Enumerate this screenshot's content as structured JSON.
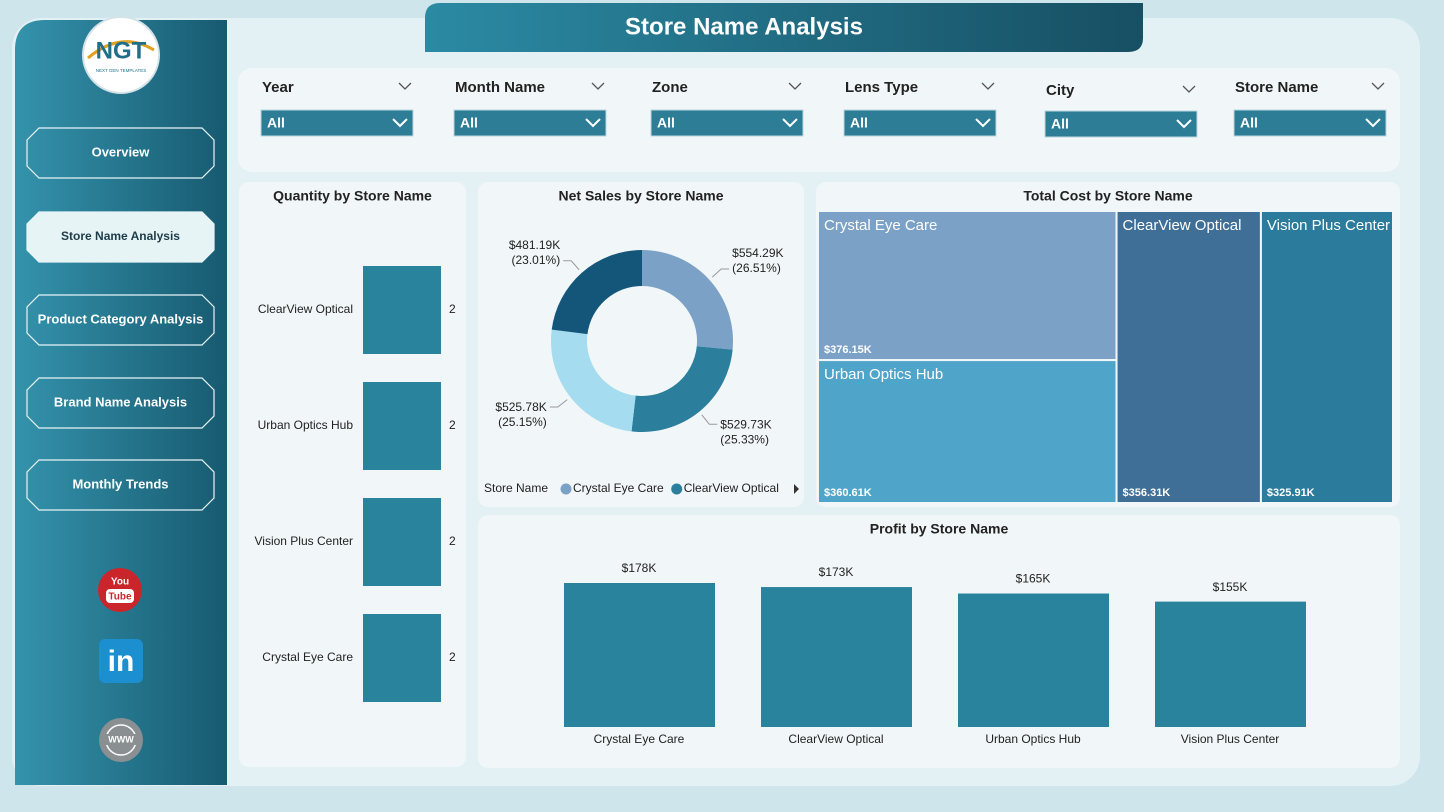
{
  "header": {
    "title": "Store Name Analysis"
  },
  "logo": {
    "text": "NGT",
    "tagline": "NEXT GEN TEMPLATES"
  },
  "nav": [
    {
      "label": "Overview",
      "active": false
    },
    {
      "label": "Store Name Analysis",
      "active": true
    },
    {
      "label": "Product Category Analysis",
      "active": false
    },
    {
      "label": "Brand Name Analysis",
      "active": false
    },
    {
      "label": "Monthly Trends",
      "active": false
    }
  ],
  "social": {
    "youtube": [
      "You",
      "Tube"
    ],
    "linkedin": "in",
    "web": "WWW"
  },
  "filters": [
    {
      "label": "Year",
      "value": "All"
    },
    {
      "label": "Month Name",
      "value": "All"
    },
    {
      "label": "Zone",
      "value": "All"
    },
    {
      "label": "Lens Type",
      "value": "All"
    },
    {
      "label": "City",
      "value": "All"
    },
    {
      "label": "Store Name",
      "value": "All"
    }
  ],
  "chart_data": [
    {
      "type": "bar",
      "orientation": "horizontal",
      "title": "Quantity by Store Name",
      "categories": [
        "ClearView Optical",
        "Urban Optics Hub",
        "Vision Plus Center",
        "Crystal Eye Care"
      ],
      "values": [
        2,
        2,
        2,
        2
      ],
      "color": "#2a839c"
    },
    {
      "type": "donut",
      "title": "Net Sales by Store Name",
      "legend_title": "Store Name",
      "categories": [
        "Crystal Eye Care",
        "ClearView Optical",
        null,
        null
      ],
      "values": [
        554290,
        529730,
        525780,
        481190
      ],
      "value_labels": [
        "$554.29K",
        "$529.73K",
        "$525.78K",
        "$481.19K"
      ],
      "percent_labels": [
        "(26.51%)",
        "(25.33%)",
        "(25.15%)",
        "(23.01%)"
      ],
      "colors": [
        "#7ba1c7",
        "#2b7f9d",
        "#a5dcef",
        "#14567a"
      ]
    },
    {
      "type": "treemap",
      "title": "Total Cost by Store Name",
      "categories": [
        "Crystal Eye Care",
        "Urban Optics Hub",
        "ClearView Optical",
        "Vision Plus Center"
      ],
      "values": [
        376150,
        360610,
        356310,
        325910
      ],
      "value_labels": [
        "$376.15K",
        "$360.61K",
        "$356.31K",
        "$325.91K"
      ],
      "colors": [
        "#7ba1c7",
        "#4fa5c9",
        "#3f6f96",
        "#2a7b9c"
      ]
    },
    {
      "type": "bar",
      "orientation": "vertical",
      "title": "Profit by Store Name",
      "categories": [
        "Crystal Eye Care",
        "ClearView Optical",
        "Urban Optics Hub",
        "Vision Plus Center"
      ],
      "values": [
        178000,
        173000,
        165000,
        155000
      ],
      "value_labels": [
        "$178K",
        "$173K",
        "$165K",
        "$155K"
      ],
      "color": "#2a839c"
    }
  ]
}
